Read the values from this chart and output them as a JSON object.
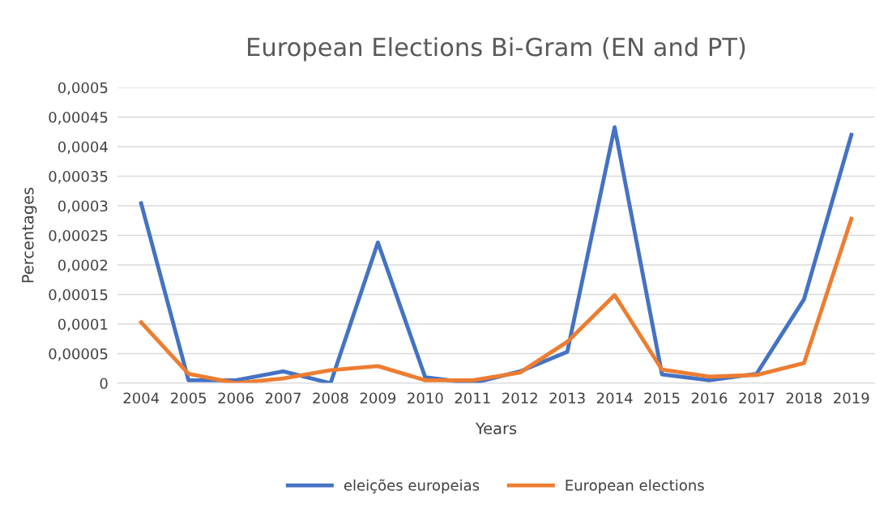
{
  "chart_data": {
    "type": "line",
    "title": "European Elections Bi-Gram (EN and PT)",
    "xlabel": "Years",
    "ylabel": "Percentages",
    "categories": [
      "2004",
      "2005",
      "2006",
      "2007",
      "2008",
      "2009",
      "2010",
      "2011",
      "2012",
      "2013",
      "2014",
      "2015",
      "2016",
      "2017",
      "2018",
      "2019"
    ],
    "series": [
      {
        "name": "eleições europeias",
        "color": "#4472c4",
        "values": [
          0.000304,
          5e-06,
          5e-06,
          2e-05,
          0,
          0.000238,
          1e-05,
          0,
          2e-05,
          5.3e-05,
          0.000433,
          1.5e-05,
          5e-06,
          1.6e-05,
          0.000142,
          0.00042
        ]
      },
      {
        "name": "European elections",
        "color": "#ed7d31",
        "values": [
          0.000103,
          1.6e-05,
          0,
          8e-06,
          2.2e-05,
          2.9e-05,
          5e-06,
          5e-06,
          1.8e-05,
          7e-05,
          0.000149,
          2.3e-05,
          1.1e-05,
          1.4e-05,
          3.4e-05,
          0.000278
        ]
      }
    ],
    "ylim": [
      0,
      0.0005
    ],
    "yticks": [
      {
        "value": 0,
        "label": "0"
      },
      {
        "value": 5e-05,
        "label": "0,00005"
      },
      {
        "value": 0.0001,
        "label": "0,0001"
      },
      {
        "value": 0.00015,
        "label": "0,00015"
      },
      {
        "value": 0.0002,
        "label": "0,0002"
      },
      {
        "value": 0.00025,
        "label": "0,00025"
      },
      {
        "value": 0.0003,
        "label": "0,0003"
      },
      {
        "value": 0.00035,
        "label": "0,00035"
      },
      {
        "value": 0.0004,
        "label": "0,0004"
      },
      {
        "value": 0.00045,
        "label": "0,00045"
      },
      {
        "value": 0.0005,
        "label": "0,0005"
      }
    ],
    "grid": "y",
    "legend": "bottom",
    "marker": "none",
    "line_style": "solid"
  }
}
